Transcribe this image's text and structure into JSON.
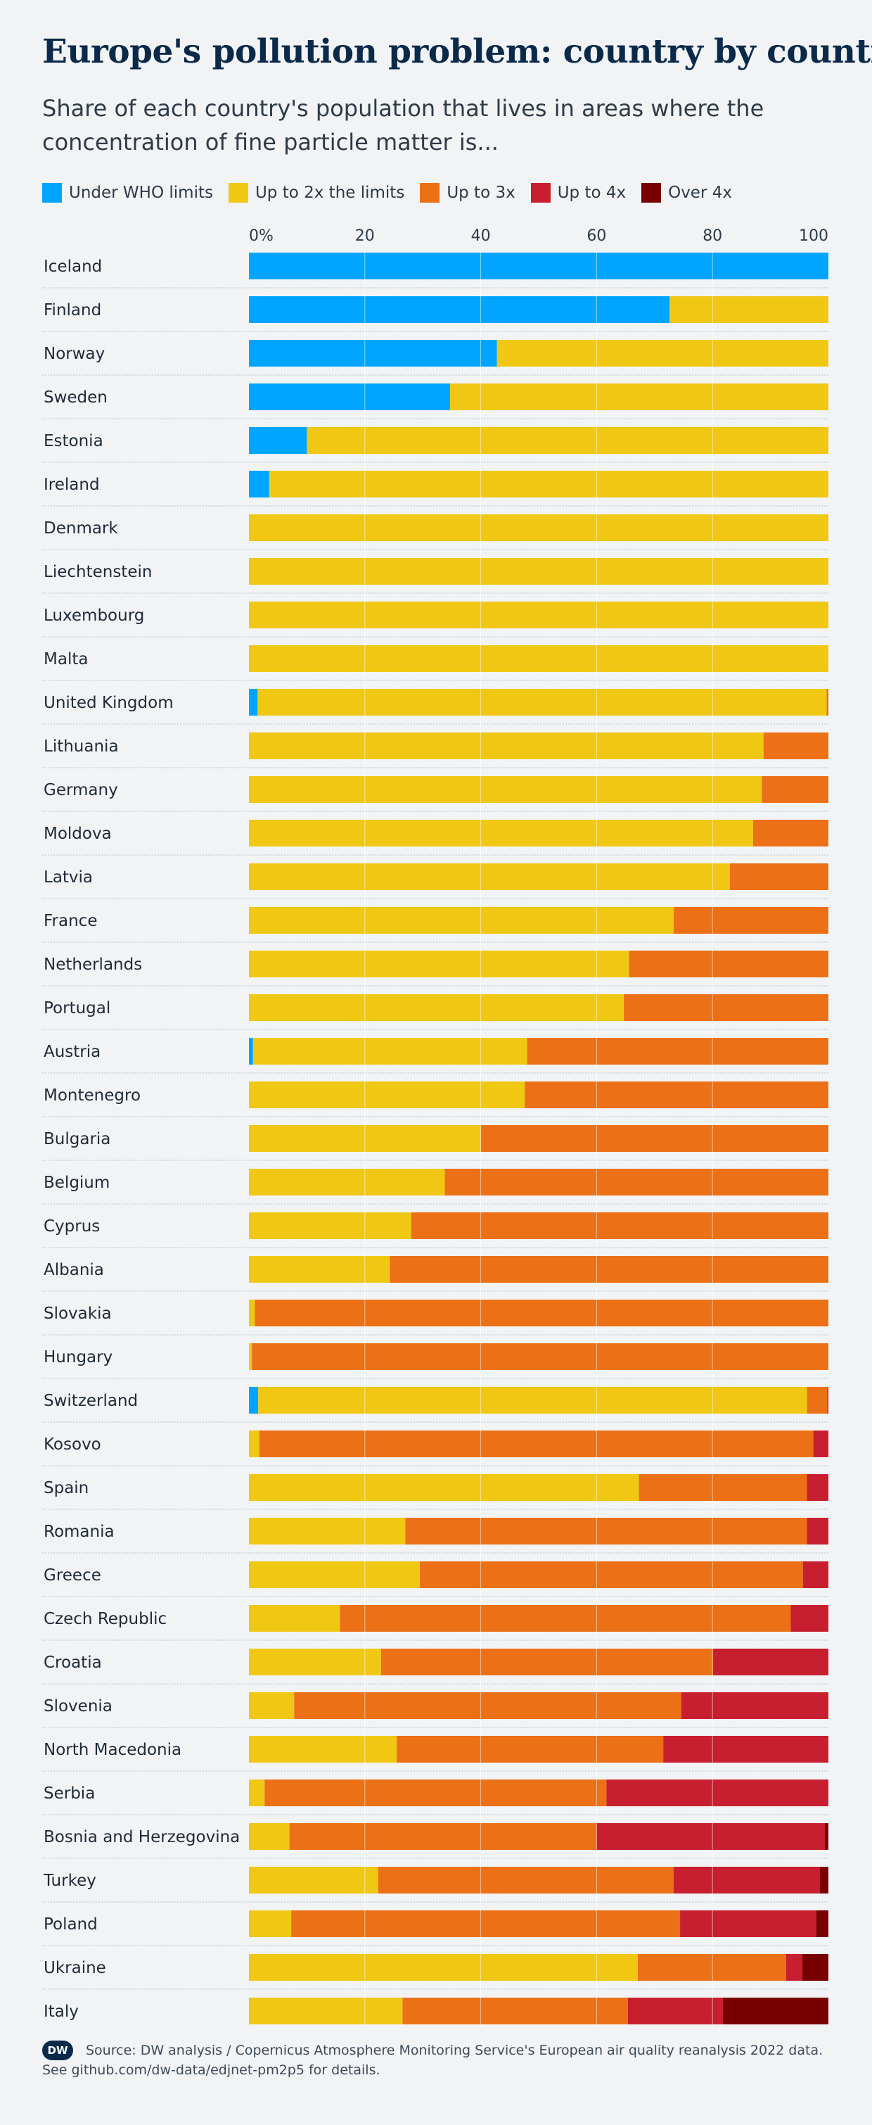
{
  "title": "Europe's pollution problem: country by country",
  "subtitle": "Share of each country's population that lives in areas where the concentration of fine particle matter is...",
  "legend": [
    {
      "label": "Under WHO limits",
      "color": "#00a5ff"
    },
    {
      "label": "Up to 2x the limits",
      "color": "#f0c814"
    },
    {
      "label": "Up to 3x",
      "color": "#ec7016"
    },
    {
      "label": "Up to 4x",
      "color": "#c81f30"
    },
    {
      "label": "Over 4x",
      "color": "#780000"
    }
  ],
  "footer": {
    "logo_text": "DW",
    "source": "Source: DW analysis / Copernicus Atmosphere Monitoring Service's European air quality reanalysis 2022 data.",
    "details": "See github.com/dw-data/edjnet-pm2p5 for details."
  },
  "chart_data": {
    "type": "bar",
    "orientation": "horizontal",
    "stacked": true,
    "title": "Europe's pollution problem: country by country",
    "xlim": [
      0,
      100
    ],
    "xticks": [
      0,
      20,
      40,
      60,
      80,
      100
    ],
    "xtick_labels": [
      "0%",
      "20",
      "40",
      "60",
      "80",
      "100"
    ],
    "grid": true,
    "legend_position": "top",
    "categories": [
      "Iceland",
      "Finland",
      "Norway",
      "Sweden",
      "Estonia",
      "Ireland",
      "Denmark",
      "Liechtenstein",
      "Luxembourg",
      "Malta",
      "United Kingdom",
      "Lithuania",
      "Germany",
      "Moldova",
      "Latvia",
      "France",
      "Netherlands",
      "Portugal",
      "Austria",
      "Montenegro",
      "Bulgaria",
      "Belgium",
      "Cyprus",
      "Albania",
      "Slovakia",
      "Hungary",
      "Switzerland",
      "Kosovo",
      "Spain",
      "Romania",
      "Greece",
      "Czech Republic",
      "Croatia",
      "Slovenia",
      "North Macedonia",
      "Serbia",
      "Bosnia and Herzegovina",
      "Turkey",
      "Poland",
      "Ukraine",
      "Italy"
    ],
    "series": [
      {
        "name": "Under WHO limits",
        "color": "#00a5ff",
        "values": [
          100,
          72.6,
          42.8,
          34.7,
          10,
          3.5,
          0,
          0,
          0,
          0,
          1.5,
          0,
          0,
          0,
          0,
          0,
          0,
          0,
          0.7,
          0,
          0,
          0,
          0,
          0,
          0,
          0,
          1.6,
          0,
          0,
          0,
          0,
          0,
          0,
          0,
          0,
          0,
          0,
          0,
          0,
          0,
          0
        ]
      },
      {
        "name": "Up to 2x the limits",
        "color": "#f0c814",
        "values": [
          0,
          27.4,
          57.2,
          65.3,
          90,
          96.5,
          100,
          100,
          100,
          100,
          98.2,
          88.8,
          88.5,
          87,
          83,
          73.3,
          65.6,
          64.7,
          47.3,
          47.6,
          40,
          33.8,
          28,
          24.3,
          1,
          0.5,
          94.7,
          1.8,
          67.3,
          27,
          29.5,
          15.7,
          22.8,
          7.8,
          25.5,
          2.7,
          7,
          22.3,
          7.3,
          67.1,
          26.5
        ]
      },
      {
        "name": "Up to 3x",
        "color": "#ec7016",
        "values": [
          0,
          0,
          0,
          0,
          0,
          0,
          0,
          0,
          0,
          0,
          0.3,
          11.2,
          11.5,
          13,
          17,
          26.7,
          34.4,
          35.3,
          52,
          52.4,
          60,
          66.2,
          72,
          75.7,
          99,
          99.5,
          3.5,
          95.6,
          29,
          69.3,
          66.1,
          77.8,
          57.3,
          66.8,
          46,
          59,
          53,
          51,
          67.1,
          25.6,
          38.9
        ]
      },
      {
        "name": "Up to 4x",
        "color": "#c81f30",
        "values": [
          0,
          0,
          0,
          0,
          0,
          0,
          0,
          0,
          0,
          0,
          0,
          0,
          0,
          0,
          0,
          0,
          0,
          0,
          0,
          0,
          0,
          0,
          0,
          0,
          0,
          0,
          0.2,
          2.6,
          3.7,
          3.7,
          4.4,
          6.5,
          19.9,
          25.4,
          28.5,
          38.3,
          39.4,
          25.2,
          23.5,
          2.8,
          16.4
        ]
      },
      {
        "name": "Over 4x",
        "color": "#780000",
        "values": [
          0,
          0,
          0,
          0,
          0,
          0,
          0,
          0,
          0,
          0,
          0,
          0,
          0,
          0,
          0,
          0,
          0,
          0,
          0,
          0,
          0,
          0,
          0,
          0,
          0,
          0,
          0,
          0,
          0,
          0,
          0,
          0,
          0,
          0,
          0,
          0,
          0.6,
          1.5,
          2.1,
          4.5,
          18.2
        ]
      }
    ]
  }
}
